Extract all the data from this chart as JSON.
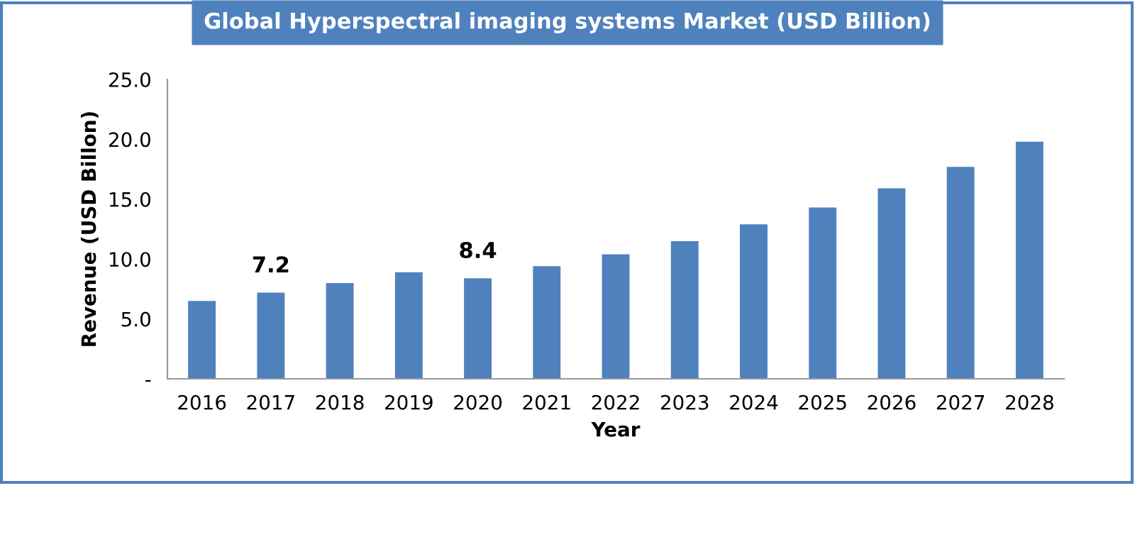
{
  "chart_data": {
    "type": "bar",
    "title": "Global Hyperspectral imaging systems Market (USD Billion)",
    "xlabel": "Year",
    "ylabel": "Revenue (USD Billon)",
    "categories": [
      "2016",
      "2017",
      "2018",
      "2019",
      "2020",
      "2021",
      "2022",
      "2023",
      "2024",
      "2025",
      "2026",
      "2027",
      "2028"
    ],
    "values": [
      6.5,
      7.2,
      8.0,
      8.9,
      8.4,
      9.4,
      10.4,
      11.5,
      12.9,
      14.3,
      15.9,
      17.7,
      19.8
    ],
    "value_labels": [
      null,
      "7.2",
      null,
      null,
      "8.4",
      null,
      null,
      null,
      null,
      null,
      null,
      null,
      null
    ],
    "color": "#4f81bd",
    "ylim": [
      0,
      25
    ],
    "yticks": [
      {
        "value": 0,
        "label": "-"
      },
      {
        "value": 5,
        "label": "5.0"
      },
      {
        "value": 10,
        "label": "10.0"
      },
      {
        "value": 15,
        "label": "15.0"
      },
      {
        "value": 20,
        "label": "20.0"
      },
      {
        "value": 25,
        "label": "25.0"
      }
    ],
    "grid": false,
    "legend": false
  }
}
